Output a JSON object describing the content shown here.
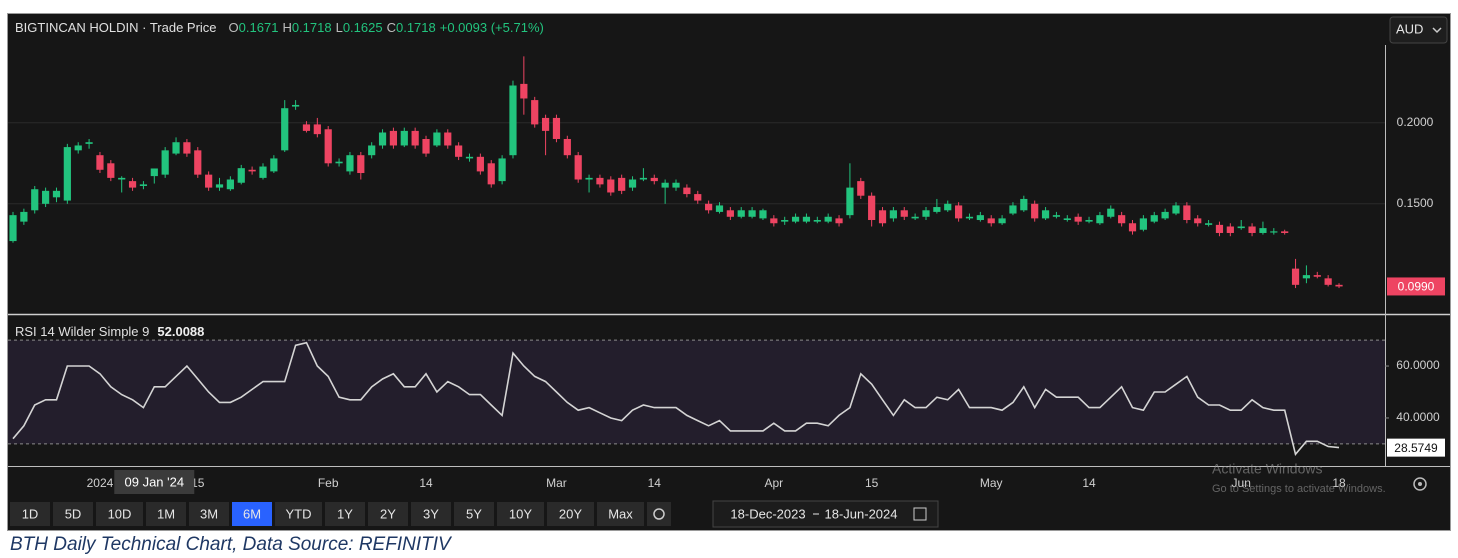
{
  "chart_data": [
    {
      "type": "candlestick",
      "title": "BIGTINCAN HOLDIN · Trade Price",
      "legend_labels": [
        "O",
        "H",
        "L",
        "C"
      ],
      "change": "+0.0093 (+5.71%)",
      "currency": "AUD",
      "up_color": "#22c47e",
      "down_color": "#ee4462",
      "xlim": [
        -0.46,
        126.23
      ],
      "ylim": [
        0.082,
        0.248
      ],
      "yticks": [
        {
          "value": 0.15,
          "label": "0.1500"
        },
        {
          "value": 0.2,
          "label": "0.2000"
        }
      ],
      "grid": true,
      "last_price": {
        "value": 0.099,
        "label": "0.0990"
      },
      "ohlc": [
        [
          0.127,
          0.145,
          0.126,
          0.143
        ],
        [
          0.139,
          0.147,
          0.137,
          0.145
        ],
        [
          0.146,
          0.161,
          0.144,
          0.159
        ],
        [
          0.15,
          0.16,
          0.148,
          0.158
        ],
        [
          0.154,
          0.16,
          0.151,
          0.158
        ],
        [
          0.152,
          0.187,
          0.15,
          0.185
        ],
        [
          0.183,
          0.188,
          0.181,
          0.186
        ],
        [
          0.187,
          0.19,
          0.184,
          0.188
        ],
        [
          0.18,
          0.182,
          0.169,
          0.171
        ],
        [
          0.175,
          0.177,
          0.164,
          0.166
        ],
        [
          0.165,
          0.167,
          0.157,
          0.166
        ],
        [
          0.164,
          0.166,
          0.158,
          0.16
        ],
        [
          0.161,
          0.164,
          0.159,
          0.162
        ],
        [
          0.1671,
          0.1718,
          0.1625,
          0.1718
        ],
        [
          0.168,
          0.185,
          0.166,
          0.183
        ],
        [
          0.181,
          0.191,
          0.18,
          0.188
        ],
        [
          0.188,
          0.19,
          0.179,
          0.181
        ],
        [
          0.183,
          0.185,
          0.166,
          0.168
        ],
        [
          0.168,
          0.17,
          0.158,
          0.16
        ],
        [
          0.16,
          0.166,
          0.158,
          0.162
        ],
        [
          0.159,
          0.167,
          0.158,
          0.165
        ],
        [
          0.163,
          0.174,
          0.162,
          0.172
        ],
        [
          0.171,
          0.173,
          0.168,
          0.17
        ],
        [
          0.166,
          0.175,
          0.165,
          0.173
        ],
        [
          0.17,
          0.18,
          0.169,
          0.178
        ],
        [
          0.183,
          0.214,
          0.182,
          0.209
        ],
        [
          0.21,
          0.214,
          0.208,
          0.211
        ],
        [
          0.199,
          0.201,
          0.194,
          0.195
        ],
        [
          0.199,
          0.203,
          0.191,
          0.193
        ],
        [
          0.196,
          0.198,
          0.173,
          0.175
        ],
        [
          0.175,
          0.178,
          0.173,
          0.176
        ],
        [
          0.17,
          0.182,
          0.168,
          0.18
        ],
        [
          0.18,
          0.182,
          0.165,
          0.169
        ],
        [
          0.18,
          0.188,
          0.178,
          0.186
        ],
        [
          0.186,
          0.196,
          0.184,
          0.194
        ],
        [
          0.195,
          0.197,
          0.184,
          0.186
        ],
        [
          0.186,
          0.197,
          0.185,
          0.195
        ],
        [
          0.195,
          0.197,
          0.184,
          0.186
        ],
        [
          0.19,
          0.192,
          0.179,
          0.181
        ],
        [
          0.186,
          0.196,
          0.185,
          0.194
        ],
        [
          0.194,
          0.196,
          0.184,
          0.186
        ],
        [
          0.186,
          0.188,
          0.177,
          0.179
        ],
        [
          0.178,
          0.181,
          0.176,
          0.179
        ],
        [
          0.179,
          0.181,
          0.168,
          0.17
        ],
        [
          0.175,
          0.177,
          0.16,
          0.162
        ],
        [
          0.164,
          0.18,
          0.162,
          0.178
        ],
        [
          0.18,
          0.226,
          0.178,
          0.223
        ],
        [
          0.224,
          0.241,
          0.205,
          0.215
        ],
        [
          0.214,
          0.216,
          0.197,
          0.199
        ],
        [
          0.203,
          0.205,
          0.18,
          0.195
        ],
        [
          0.203,
          0.205,
          0.188,
          0.19
        ],
        [
          0.19,
          0.192,
          0.178,
          0.18
        ],
        [
          0.18,
          0.182,
          0.163,
          0.165
        ],
        [
          0.165,
          0.168,
          0.157,
          0.166
        ],
        [
          0.166,
          0.168,
          0.16,
          0.162
        ],
        [
          0.165,
          0.167,
          0.155,
          0.157
        ],
        [
          0.166,
          0.168,
          0.156,
          0.158
        ],
        [
          0.16,
          0.167,
          0.158,
          0.165
        ],
        [
          0.165,
          0.172,
          0.164,
          0.166
        ],
        [
          0.166,
          0.168,
          0.162,
          0.164
        ],
        [
          0.16,
          0.165,
          0.15,
          0.163
        ],
        [
          0.16,
          0.165,
          0.158,
          0.163
        ],
        [
          0.16,
          0.162,
          0.154,
          0.156
        ],
        [
          0.156,
          0.158,
          0.15,
          0.152
        ],
        [
          0.15,
          0.152,
          0.144,
          0.146
        ],
        [
          0.145,
          0.151,
          0.144,
          0.149
        ],
        [
          0.146,
          0.148,
          0.14,
          0.142
        ],
        [
          0.142,
          0.148,
          0.141,
          0.146
        ],
        [
          0.142,
          0.148,
          0.141,
          0.146
        ],
        [
          0.141,
          0.147,
          0.14,
          0.146
        ],
        [
          0.141,
          0.143,
          0.136,
          0.138
        ],
        [
          0.139,
          0.142,
          0.137,
          0.14
        ],
        [
          0.139,
          0.144,
          0.138,
          0.142
        ],
        [
          0.139,
          0.144,
          0.138,
          0.142
        ],
        [
          0.139,
          0.142,
          0.138,
          0.14
        ],
        [
          0.139,
          0.144,
          0.138,
          0.142
        ],
        [
          0.141,
          0.143,
          0.136,
          0.138
        ],
        [
          0.143,
          0.175,
          0.141,
          0.16
        ],
        [
          0.164,
          0.166,
          0.153,
          0.155
        ],
        [
          0.155,
          0.157,
          0.136,
          0.14
        ],
        [
          0.146,
          0.148,
          0.136,
          0.138
        ],
        [
          0.141,
          0.148,
          0.139,
          0.146
        ],
        [
          0.146,
          0.148,
          0.14,
          0.142
        ],
        [
          0.141,
          0.144,
          0.14,
          0.142
        ],
        [
          0.142,
          0.148,
          0.14,
          0.146
        ],
        [
          0.145,
          0.153,
          0.144,
          0.148
        ],
        [
          0.146,
          0.152,
          0.145,
          0.15
        ],
        [
          0.149,
          0.151,
          0.139,
          0.141
        ],
        [
          0.141,
          0.144,
          0.14,
          0.142
        ],
        [
          0.14,
          0.145,
          0.139,
          0.143
        ],
        [
          0.141,
          0.143,
          0.136,
          0.138
        ],
        [
          0.138,
          0.143,
          0.137,
          0.141
        ],
        [
          0.144,
          0.151,
          0.143,
          0.149
        ],
        [
          0.146,
          0.155,
          0.145,
          0.153
        ],
        [
          0.15,
          0.152,
          0.139,
          0.141
        ],
        [
          0.141,
          0.148,
          0.14,
          0.146
        ],
        [
          0.142,
          0.145,
          0.141,
          0.143
        ],
        [
          0.14,
          0.143,
          0.139,
          0.141
        ],
        [
          0.142,
          0.144,
          0.137,
          0.139
        ],
        [
          0.139,
          0.142,
          0.138,
          0.14
        ],
        [
          0.138,
          0.145,
          0.137,
          0.143
        ],
        [
          0.142,
          0.149,
          0.141,
          0.147
        ],
        [
          0.143,
          0.145,
          0.136,
          0.138
        ],
        [
          0.138,
          0.14,
          0.131,
          0.133
        ],
        [
          0.134,
          0.143,
          0.133,
          0.141
        ],
        [
          0.139,
          0.145,
          0.138,
          0.143
        ],
        [
          0.141,
          0.147,
          0.14,
          0.145
        ],
        [
          0.144,
          0.151,
          0.143,
          0.149
        ],
        [
          0.149,
          0.151,
          0.138,
          0.14
        ],
        [
          0.141,
          0.143,
          0.136,
          0.138
        ],
        [
          0.137,
          0.14,
          0.136,
          0.138
        ],
        [
          0.137,
          0.139,
          0.13,
          0.132
        ],
        [
          0.136,
          0.138,
          0.13,
          0.132
        ],
        [
          0.135,
          0.14,
          0.134,
          0.136
        ],
        [
          0.136,
          0.138,
          0.13,
          0.132
        ],
        [
          0.132,
          0.139,
          0.131,
          0.135
        ],
        [
          0.133,
          0.135,
          0.131,
          0.133
        ],
        [
          0.133,
          0.134,
          0.131,
          0.132
        ],
        [
          0.11,
          0.116,
          0.098,
          0.1
        ],
        [
          0.104,
          0.112,
          0.101,
          0.106
        ],
        [
          0.106,
          0.108,
          0.104,
          0.105
        ],
        [
          0.104,
          0.106,
          0.099,
          0.1
        ],
        [
          0.1,
          0.101,
          0.098,
          0.099
        ]
      ]
    },
    {
      "type": "line",
      "title": "RSI 14 Wilder Simple 9",
      "color": "#d4d4d4",
      "xlim": [
        -0.46,
        126.23
      ],
      "ylim": [
        21.5,
        78.5
      ],
      "yticks": [
        {
          "value": 40,
          "label": "40.0000"
        },
        {
          "value": 60,
          "label": "60.0000"
        }
      ],
      "band": [
        30,
        70
      ],
      "band_color": "#7e57c2",
      "xticks": [
        {
          "value": 8,
          "label": "2024"
        },
        {
          "value": 17,
          "label": "15"
        },
        {
          "value": 29,
          "label": "Feb"
        },
        {
          "value": 38,
          "label": "14"
        },
        {
          "value": 50,
          "label": "Mar"
        },
        {
          "value": 59,
          "label": "14"
        },
        {
          "value": 70,
          "label": "Apr"
        },
        {
          "value": 79,
          "label": "15"
        },
        {
          "value": 90,
          "label": "May"
        },
        {
          "value": 99,
          "label": "14"
        },
        {
          "value": 113,
          "label": "Jun"
        },
        {
          "value": 122,
          "label": "18"
        }
      ],
      "cursor": {
        "value": 13,
        "label": "09 Jan '24"
      },
      "values": [
        32,
        37,
        45,
        47,
        47,
        60,
        60,
        60,
        57,
        52,
        49,
        47,
        44,
        52.0088,
        52,
        56,
        60,
        55,
        50,
        46,
        46,
        48,
        51,
        54,
        54,
        54,
        68,
        69,
        60,
        56,
        48,
        47,
        47,
        52,
        55,
        57,
        52,
        52,
        57,
        50,
        54,
        52,
        49,
        49,
        45,
        41,
        65,
        60,
        56,
        54,
        50,
        46,
        43,
        44,
        42,
        40,
        39,
        43,
        45,
        44,
        44,
        44,
        41,
        39,
        37,
        39,
        35,
        35,
        35,
        35,
        38,
        35,
        35,
        38,
        38,
        37,
        41,
        44,
        57,
        53,
        47,
        41,
        47,
        44,
        44,
        48,
        47,
        51,
        44,
        44,
        44,
        43,
        46,
        52,
        44,
        51,
        48,
        48,
        48,
        44,
        44,
        48,
        52,
        44,
        43,
        50,
        50,
        53,
        56,
        48,
        45,
        45,
        43,
        43,
        47,
        44,
        43,
        43,
        26,
        31,
        31,
        29,
        28.5749
      ]
    }
  ],
  "toolbar": {
    "ranges": [
      "1D",
      "5D",
      "10D",
      "1M",
      "3M",
      "6M",
      "YTD",
      "1Y",
      "2Y",
      "3Y",
      "5Y",
      "10Y",
      "20Y",
      "Max"
    ],
    "selected_index": 5,
    "date_from": "18-Dec-2023",
    "date_to": "18-Jun-2024"
  },
  "watermark": {
    "line1": "Activate Windows",
    "line2": "Go to Settings to activate Windows."
  },
  "caption": "BTH Daily Technical Chart, Data Source: REFINITIV"
}
